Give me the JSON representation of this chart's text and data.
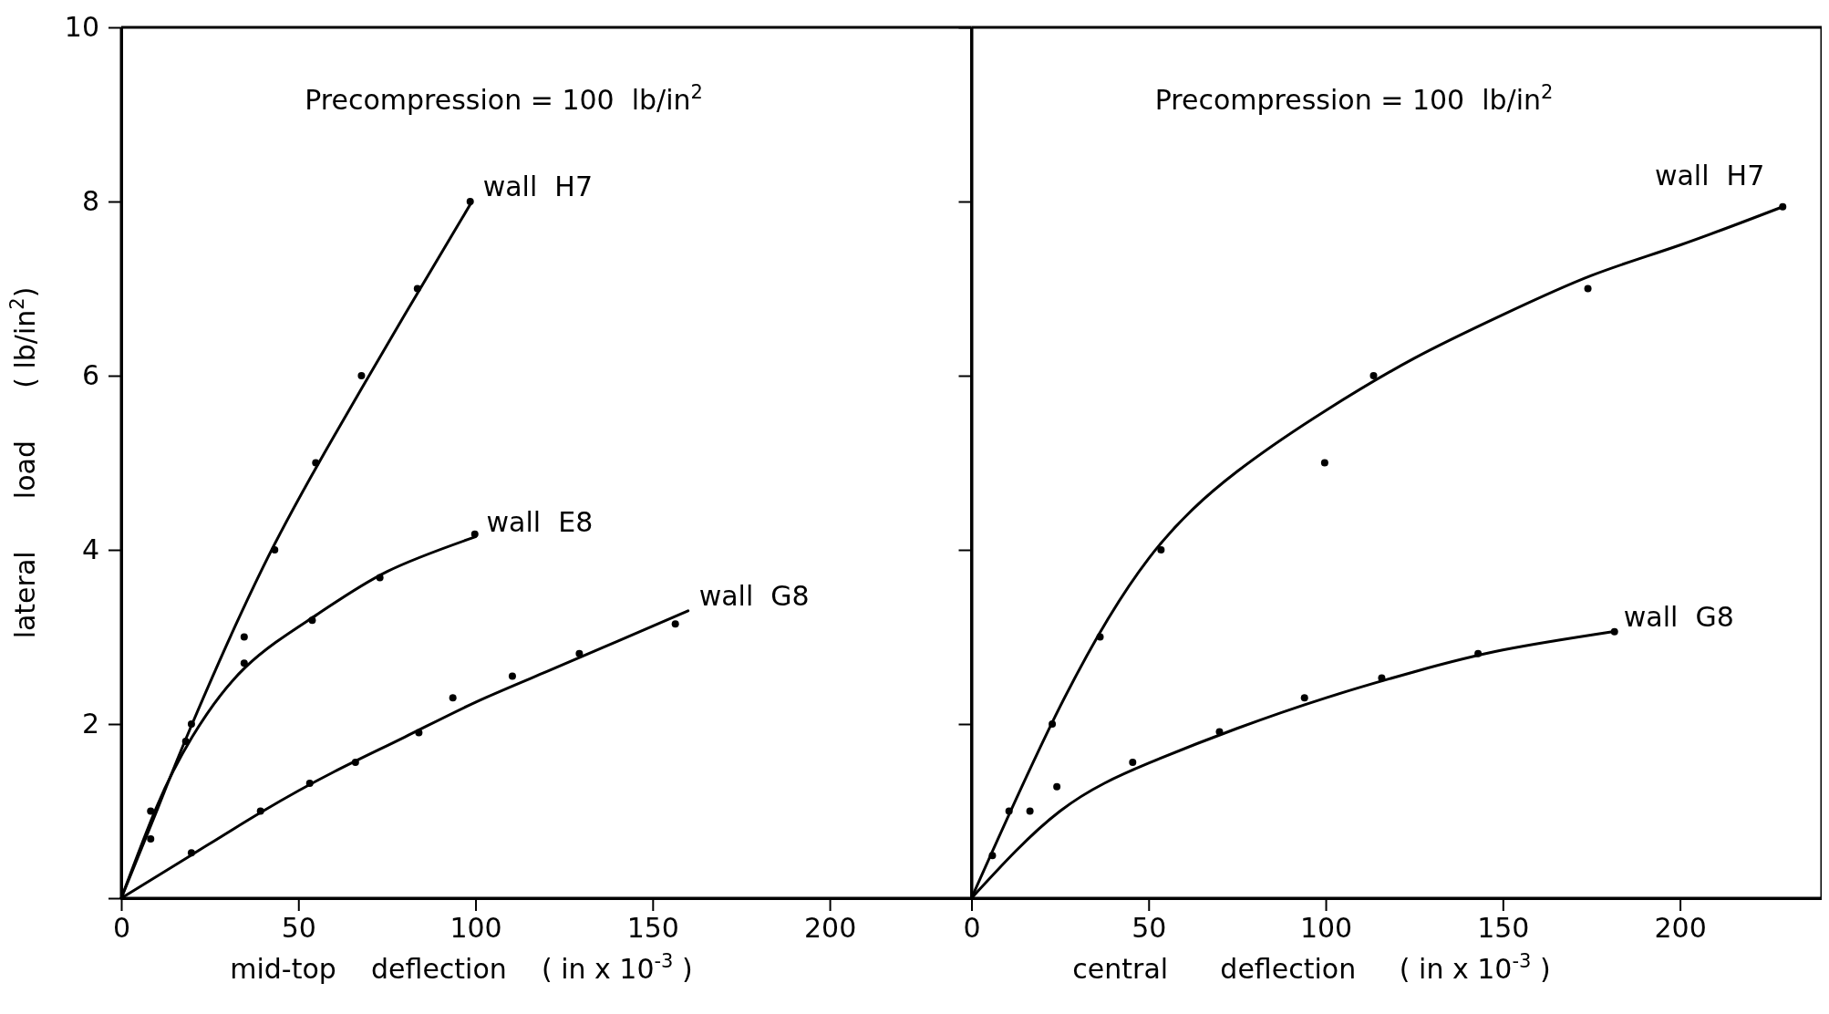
{
  "chart_data": [
    {
      "type": "line",
      "annotations": [
        "Precompression = 100  lb/in$^{2}$"
      ],
      "xlabel": "mid-top    deflection    ( in x 10$^{-3}$ )",
      "ylabel": "lateral      load      ( lb/in$^{2}$)",
      "xlim": [
        0,
        240
      ],
      "xticks": [
        0,
        50,
        100,
        150,
        200
      ],
      "ylim": [
        0,
        10
      ],
      "yticks": [
        {
          "value": 0,
          "label": null
        },
        2,
        4,
        6,
        8,
        10
      ],
      "grid": false,
      "legend": false,
      "series": [
        {
          "name": "wall  H7",
          "color": "#000000",
          "x": [
            0,
            10,
            20,
            40,
            60,
            80,
            99
          ],
          "values": [
            0,
            1.0,
            2.0,
            3.8,
            5.3,
            6.7,
            8.0
          ]
        },
        {
          "name": "wall  E8",
          "color": "#000000",
          "x": [
            0,
            10,
            20,
            35,
            55,
            75,
            100
          ],
          "values": [
            0,
            1.05,
            1.85,
            2.65,
            3.25,
            3.75,
            4.15
          ]
        },
        {
          "name": "wall  G8",
          "color": "#000000",
          "x": [
            0,
            20,
            40,
            60,
            80,
            100,
            120,
            140,
            160
          ],
          "values": [
            0,
            0.5,
            1.0,
            1.45,
            1.85,
            2.25,
            2.6,
            2.95,
            3.3
          ]
        },
        {
          "color": "#000000",
          "type": "scatter",
          "x": [
            8.3,
            19.8,
            34.7,
            43.3,
            54.9,
            67.8,
            83.6,
            98.5
          ],
          "values": [
            1.0,
            2.0,
            3.0,
            4.0,
            5.0,
            6.0,
            7.0,
            8.0
          ]
        },
        {
          "color": "#000000",
          "type": "scatter",
          "x": [
            8.3,
            18.2,
            34.7,
            53.9,
            73,
            99.8
          ],
          "values": [
            0.68,
            1.8,
            2.7,
            3.19,
            3.68,
            4.18
          ]
        },
        {
          "color": "#000000",
          "type": "scatter",
          "x": [
            19.8,
            39.3,
            53.2,
            66.1,
            84,
            93.6,
            110.4,
            129.3,
            156.4
          ],
          "values": [
            0.52,
            1.0,
            1.32,
            1.56,
            1.9,
            2.3,
            2.55,
            2.81,
            3.15
          ]
        }
      ]
    },
    {
      "type": "line",
      "annotations": [
        "Precompression = 100  lb/in$^{2}$"
      ],
      "xlabel": "central      deflection     ( in x 10$^{-3}$ )",
      "xlim": [
        0,
        240
      ],
      "xticks": [
        0,
        50,
        100,
        150,
        200
      ],
      "ylim": [
        0,
        10
      ],
      "yticks": [
        {
          "value": 0,
          "label": null
        },
        {
          "value": 2,
          "label": null
        },
        {
          "value": 4,
          "label": null
        },
        {
          "value": 6,
          "label": null
        },
        {
          "value": 8,
          "label": null
        },
        {
          "value": 10,
          "label": null
        }
      ],
      "tick_labels": "x",
      "grid": false,
      "legend": false,
      "series": [
        {
          "name": "wall  H7",
          "color": "#000000",
          "x": [
            0,
            25,
            50,
            75,
            100,
            125,
            150,
            175,
            200,
            229
          ],
          "values": [
            0,
            2.2,
            3.9,
            4.9,
            5.6,
            6.2,
            6.7,
            7.15,
            7.5,
            7.94
          ]
        },
        {
          "name": "wall  G8",
          "color": "#000000",
          "x": [
            0,
            25,
            50,
            75,
            100,
            125,
            150,
            181
          ],
          "values": [
            0,
            1.0,
            1.55,
            1.95,
            2.3,
            2.6,
            2.85,
            3.06
          ]
        },
        {
          "color": "#000000",
          "type": "scatter",
          "x": [
            10.6,
            22.8,
            36.3,
            53.5,
            99.7,
            113.5,
            174,
            229
          ],
          "values": [
            1.0,
            2.0,
            3.0,
            4.0,
            5.0,
            6.0,
            7.0,
            7.94
          ]
        },
        {
          "color": "#000000",
          "type": "scatter",
          "x": [
            5.9,
            16.5,
            24.1,
            45.5,
            70,
            94,
            115.8,
            143,
            181.5
          ],
          "values": [
            0.49,
            1.0,
            1.28,
            1.56,
            1.91,
            2.3,
            2.53,
            2.81,
            3.06
          ]
        }
      ]
    }
  ]
}
